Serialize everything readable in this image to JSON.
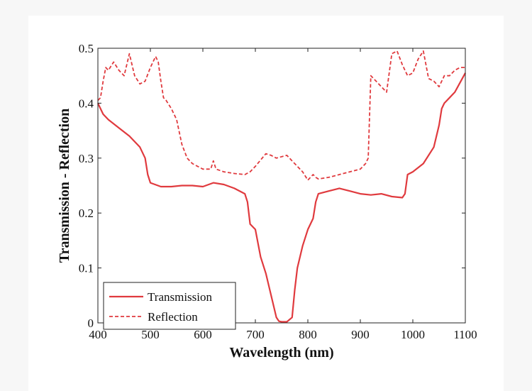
{
  "chart_data": {
    "type": "line",
    "title": "",
    "xlabel": "Wavelength (nm)",
    "ylabel": "Transmission - Reflection",
    "xlim": [
      400,
      1100
    ],
    "ylim": [
      0,
      0.5
    ],
    "xticks": [
      400,
      500,
      600,
      700,
      800,
      900,
      1000,
      1100
    ],
    "yticks": [
      0,
      0.1,
      0.2,
      0.3,
      0.4,
      0.5
    ],
    "ytick_labels": [
      "0",
      "0.1",
      "0.2",
      "0.3",
      "0.4",
      "0.5"
    ],
    "grid": false,
    "legend": {
      "placement": "bottom-left"
    },
    "colors": {
      "series": "#e03a3e"
    },
    "series": [
      {
        "name": "Transmission",
        "style": "solid",
        "x": [
          400,
          410,
          420,
          440,
          460,
          480,
          490,
          495,
          500,
          520,
          540,
          560,
          580,
          600,
          620,
          640,
          660,
          680,
          685,
          690,
          700,
          710,
          720,
          730,
          740,
          745,
          750,
          760,
          770,
          775,
          780,
          790,
          800,
          810,
          815,
          820,
          840,
          860,
          880,
          900,
          920,
          940,
          960,
          980,
          985,
          990,
          1000,
          1020,
          1040,
          1050,
          1055,
          1060,
          1080,
          1100
        ],
        "y": [
          0.4,
          0.38,
          0.37,
          0.355,
          0.34,
          0.32,
          0.3,
          0.27,
          0.255,
          0.248,
          0.248,
          0.25,
          0.25,
          0.248,
          0.255,
          0.252,
          0.245,
          0.235,
          0.22,
          0.18,
          0.17,
          0.12,
          0.09,
          0.05,
          0.01,
          0.003,
          0.002,
          0.002,
          0.01,
          0.06,
          0.1,
          0.14,
          0.17,
          0.19,
          0.22,
          0.235,
          0.24,
          0.245,
          0.24,
          0.235,
          0.233,
          0.235,
          0.23,
          0.228,
          0.235,
          0.27,
          0.275,
          0.29,
          0.32,
          0.36,
          0.39,
          0.4,
          0.42,
          0.455
        ]
      },
      {
        "name": "Reflection",
        "style": "dashed",
        "x": [
          400,
          405,
          410,
          415,
          420,
          430,
          440,
          450,
          460,
          470,
          480,
          490,
          500,
          510,
          515,
          520,
          525,
          530,
          540,
          550,
          560,
          570,
          580,
          600,
          615,
          620,
          625,
          640,
          660,
          680,
          690,
          700,
          720,
          730,
          740,
          760,
          770,
          780,
          790,
          800,
          810,
          815,
          820,
          840,
          860,
          880,
          900,
          910,
          915,
          920,
          930,
          940,
          950,
          960,
          970,
          980,
          990,
          1000,
          1010,
          1020,
          1025,
          1030,
          1040,
          1050,
          1055,
          1060,
          1070,
          1080,
          1090,
          1100
        ],
        "y": [
          0.405,
          0.41,
          0.44,
          0.465,
          0.46,
          0.475,
          0.46,
          0.45,
          0.49,
          0.45,
          0.435,
          0.44,
          0.465,
          0.485,
          0.475,
          0.44,
          0.41,
          0.405,
          0.39,
          0.37,
          0.325,
          0.3,
          0.29,
          0.28,
          0.28,
          0.295,
          0.28,
          0.275,
          0.272,
          0.27,
          0.275,
          0.285,
          0.308,
          0.305,
          0.3,
          0.305,
          0.295,
          0.285,
          0.275,
          0.26,
          0.27,
          0.265,
          0.262,
          0.265,
          0.27,
          0.275,
          0.28,
          0.29,
          0.3,
          0.45,
          0.44,
          0.43,
          0.42,
          0.49,
          0.495,
          0.47,
          0.45,
          0.455,
          0.48,
          0.495,
          0.47,
          0.445,
          0.44,
          0.43,
          0.44,
          0.45,
          0.45,
          0.46,
          0.465,
          0.465
        ]
      }
    ]
  }
}
